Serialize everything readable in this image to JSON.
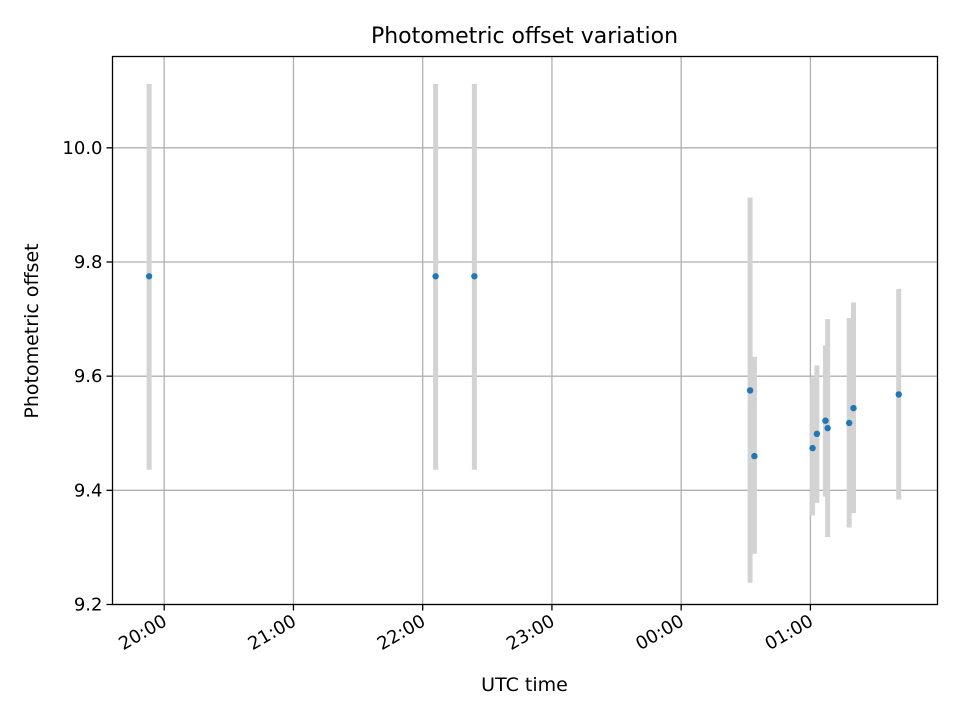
{
  "chart_data": {
    "type": "scatter",
    "title": "Photometric offset variation",
    "xlabel": "UTC time",
    "ylabel": "Photometric offset",
    "grid": true,
    "x_axis_kind": "time",
    "xlim": [
      "19:36",
      "01:59"
    ],
    "x_ticks": [
      "20:00",
      "21:00",
      "22:00",
      "23:00",
      "00:00",
      "01:00"
    ],
    "ylim": [
      9.2,
      10.16
    ],
    "y_ticks": [
      "9.2",
      "9.4",
      "9.6",
      "9.8",
      "10.0"
    ],
    "points": [
      {
        "x": "19:53",
        "y": 9.775,
        "err_low": 9.436,
        "err_high": 10.112
      },
      {
        "x": "22:06",
        "y": 9.775,
        "err_low": 9.436,
        "err_high": 10.112
      },
      {
        "x": "22:24",
        "y": 9.775,
        "err_low": 9.436,
        "err_high": 10.112
      },
      {
        "x": "00:32",
        "y": 9.575,
        "err_low": 9.238,
        "err_high": 9.913
      },
      {
        "x": "00:34",
        "y": 9.46,
        "err_low": 9.289,
        "err_high": 9.634
      },
      {
        "x": "01:01",
        "y": 9.474,
        "err_low": 9.356,
        "err_high": 9.598
      },
      {
        "x": "01:03",
        "y": 9.499,
        "err_low": 9.378,
        "err_high": 9.619
      },
      {
        "x": "01:07",
        "y": 9.522,
        "err_low": 9.389,
        "err_high": 9.654
      },
      {
        "x": "01:08",
        "y": 9.509,
        "err_low": 9.318,
        "err_high": 9.7
      },
      {
        "x": "01:18",
        "y": 9.518,
        "err_low": 9.335,
        "err_high": 9.702
      },
      {
        "x": "01:20",
        "y": 9.544,
        "err_low": 9.36,
        "err_high": 9.729
      },
      {
        "x": "01:41",
        "y": 9.568,
        "err_low": 9.384,
        "err_high": 9.753
      }
    ],
    "colors": {
      "marker": "#1f77b4",
      "errorbar": "#d3d3d3",
      "grid": "#b0b0b0",
      "axes": "#000000"
    }
  }
}
